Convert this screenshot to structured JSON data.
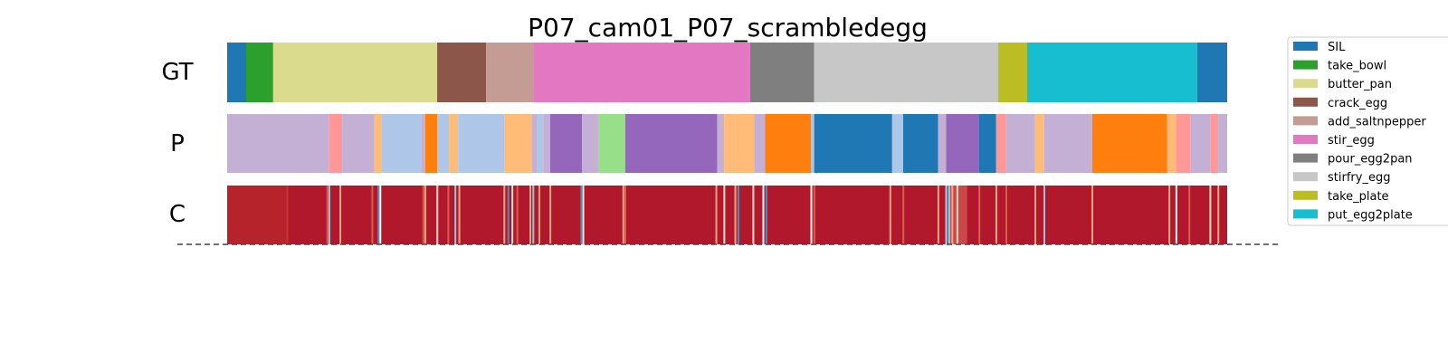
{
  "chart_data": {
    "type": "segmentation_timeline",
    "title": "P07_cam01_P07_scrambledegg",
    "rows": [
      "GT",
      "P",
      "C"
    ],
    "x_range": [
      0,
      1000
    ],
    "legend": {
      "placement": "upper-right",
      "entries": [
        {
          "label": "SIL",
          "color": "#1f77b4"
        },
        {
          "label": "take_bowl",
          "color": "#2ca02c"
        },
        {
          "label": "butter_pan",
          "color": "#dbdb8d"
        },
        {
          "label": "crack_egg",
          "color": "#8c564b"
        },
        {
          "label": "add_saltnpepper",
          "color": "#c49c94"
        },
        {
          "label": "stir_egg",
          "color": "#e377c2"
        },
        {
          "label": "pour_egg2pan",
          "color": "#7f7f7f"
        },
        {
          "label": "stirfry_egg",
          "color": "#c7c7c7"
        },
        {
          "label": "take_plate",
          "color": "#bcbd22"
        },
        {
          "label": "put_egg2plate",
          "color": "#17becf"
        }
      ]
    },
    "gt_segments": [
      {
        "start": 0,
        "end": 19,
        "color": "#1f77b4"
      },
      {
        "start": 19,
        "end": 46,
        "color": "#2ca02c"
      },
      {
        "start": 46,
        "end": 210,
        "color": "#dbdb8d"
      },
      {
        "start": 210,
        "end": 259,
        "color": "#8c564b"
      },
      {
        "start": 259,
        "end": 306,
        "color": "#c49c94"
      },
      {
        "start": 306,
        "end": 523,
        "color": "#e377c2"
      },
      {
        "start": 523,
        "end": 587,
        "color": "#7f7f7f"
      },
      {
        "start": 587,
        "end": 771,
        "color": "#c7c7c7"
      },
      {
        "start": 771,
        "end": 800,
        "color": "#bcbd22"
      },
      {
        "start": 800,
        "end": 970,
        "color": "#17becf"
      },
      {
        "start": 970,
        "end": 1000,
        "color": "#1f77b4"
      }
    ],
    "p_segments": [
      {
        "start": 0,
        "end": 102,
        "color": "#c5b0d5"
      },
      {
        "start": 102,
        "end": 115,
        "color": "#ff9896"
      },
      {
        "start": 115,
        "end": 147,
        "color": "#c5b0d5"
      },
      {
        "start": 147,
        "end": 154,
        "color": "#ffbb78"
      },
      {
        "start": 154,
        "end": 194,
        "color": "#aec7e8"
      },
      {
        "start": 194,
        "end": 198,
        "color": "#c5b0d5"
      },
      {
        "start": 198,
        "end": 210,
        "color": "#ff7f0e"
      },
      {
        "start": 210,
        "end": 222,
        "color": "#aec7e8"
      },
      {
        "start": 222,
        "end": 231,
        "color": "#ffbb78"
      },
      {
        "start": 231,
        "end": 277,
        "color": "#aec7e8"
      },
      {
        "start": 277,
        "end": 305,
        "color": "#ffbb78"
      },
      {
        "start": 305,
        "end": 310,
        "color": "#c5b0d5"
      },
      {
        "start": 310,
        "end": 316,
        "color": "#aec7e8"
      },
      {
        "start": 316,
        "end": 323,
        "color": "#c5b0d5"
      },
      {
        "start": 323,
        "end": 355,
        "color": "#9467bd"
      },
      {
        "start": 355,
        "end": 371,
        "color": "#c5b0d5"
      },
      {
        "start": 371,
        "end": 398,
        "color": "#98df8a"
      },
      {
        "start": 398,
        "end": 490,
        "color": "#9467bd"
      },
      {
        "start": 490,
        "end": 497,
        "color": "#c5b0d5"
      },
      {
        "start": 497,
        "end": 509,
        "color": "#ffbb78"
      },
      {
        "start": 509,
        "end": 527,
        "color": "#ffbb78"
      },
      {
        "start": 527,
        "end": 538,
        "color": "#c5b0d5"
      },
      {
        "start": 538,
        "end": 584,
        "color": "#ff7f0e"
      },
      {
        "start": 584,
        "end": 587,
        "color": "#aec7e8"
      },
      {
        "start": 587,
        "end": 665,
        "color": "#1f77b4"
      },
      {
        "start": 665,
        "end": 676,
        "color": "#aec7e8"
      },
      {
        "start": 676,
        "end": 711,
        "color": "#1f77b4"
      },
      {
        "start": 711,
        "end": 719,
        "color": "#c5b0d5"
      },
      {
        "start": 719,
        "end": 752,
        "color": "#9467bd"
      },
      {
        "start": 752,
        "end": 769,
        "color": "#1f77b4"
      },
      {
        "start": 769,
        "end": 779,
        "color": "#ff9896"
      },
      {
        "start": 779,
        "end": 808,
        "color": "#c5b0d5"
      },
      {
        "start": 808,
        "end": 817,
        "color": "#ffbb78"
      },
      {
        "start": 817,
        "end": 865,
        "color": "#c5b0d5"
      },
      {
        "start": 865,
        "end": 940,
        "color": "#ff7f0e"
      },
      {
        "start": 940,
        "end": 949,
        "color": "#ffbb78"
      },
      {
        "start": 949,
        "end": 963,
        "color": "#ff9896"
      },
      {
        "start": 963,
        "end": 983,
        "color": "#c5b0d5"
      },
      {
        "start": 983,
        "end": 991,
        "color": "#ff9896"
      },
      {
        "start": 991,
        "end": 1000,
        "color": "#c5b0d5"
      }
    ],
    "c_base_color": "#b2182b",
    "c_stripes": [
      {
        "pos": 60,
        "color": "#c0392b"
      },
      {
        "pos": 100,
        "color": "#d6604d"
      },
      {
        "pos": 102,
        "color": "#92c5de"
      },
      {
        "pos": 113,
        "color": "#f4a582"
      },
      {
        "pos": 145,
        "color": "#d6604d"
      },
      {
        "pos": 151,
        "color": "#4393c3"
      },
      {
        "pos": 153,
        "color": "#f7f7f7"
      },
      {
        "pos": 196,
        "color": "#d6604d"
      },
      {
        "pos": 198,
        "color": "#f4a582"
      },
      {
        "pos": 210,
        "color": "#fddbc7"
      },
      {
        "pos": 221,
        "color": "#d6604d"
      },
      {
        "pos": 228,
        "color": "#92c5de"
      },
      {
        "pos": 232,
        "color": "#f4a582"
      },
      {
        "pos": 277,
        "color": "#f4a582"
      },
      {
        "pos": 281,
        "color": "#4393c3"
      },
      {
        "pos": 285,
        "color": "#fddbc7"
      },
      {
        "pos": 290,
        "color": "#d6604d"
      },
      {
        "pos": 303,
        "color": "#f4a582"
      },
      {
        "pos": 306,
        "color": "#92c5de"
      },
      {
        "pos": 312,
        "color": "#f4a582"
      },
      {
        "pos": 323,
        "color": "#f4a582"
      },
      {
        "pos": 354,
        "color": "#4393c3"
      },
      {
        "pos": 356,
        "color": "#fddbc7"
      },
      {
        "pos": 396,
        "color": "#f4a582"
      },
      {
        "pos": 398,
        "color": "#d6604d"
      },
      {
        "pos": 489,
        "color": "#f4a582"
      },
      {
        "pos": 497,
        "color": "#fddbc7"
      },
      {
        "pos": 508,
        "color": "#f4a582"
      },
      {
        "pos": 511,
        "color": "#4393c3"
      },
      {
        "pos": 526,
        "color": "#fddbc7"
      },
      {
        "pos": 536,
        "color": "#f7f7f7"
      },
      {
        "pos": 539,
        "color": "#4393c3"
      },
      {
        "pos": 584,
        "color": "#f7f7f7"
      },
      {
        "pos": 587,
        "color": "#d6604d"
      },
      {
        "pos": 663,
        "color": "#f4a582"
      },
      {
        "pos": 676,
        "color": "#d6604d"
      },
      {
        "pos": 711,
        "color": "#f4a582"
      },
      {
        "pos": 719,
        "color": "#fddbc7"
      },
      {
        "pos": 720,
        "color": "#4393c3"
      },
      {
        "pos": 722,
        "color": "#92c5de"
      },
      {
        "pos": 725,
        "color": "#f4a582"
      },
      {
        "pos": 730,
        "color": "#fddbc7"
      },
      {
        "pos": 752,
        "color": "#d6604d"
      },
      {
        "pos": 769,
        "color": "#f4a582"
      },
      {
        "pos": 779,
        "color": "#d6604d"
      },
      {
        "pos": 808,
        "color": "#f4a582"
      },
      {
        "pos": 817,
        "color": "#92c5de"
      },
      {
        "pos": 865,
        "color": "#f4a582"
      },
      {
        "pos": 942,
        "color": "#f4a582"
      },
      {
        "pos": 949,
        "color": "#f7f7f7"
      },
      {
        "pos": 962,
        "color": "#d6604d"
      },
      {
        "pos": 983,
        "color": "#fddbc7"
      },
      {
        "pos": 991,
        "color": "#f4a582"
      }
    ],
    "c_glow": [
      {
        "start": 718,
        "end": 740,
        "color": "#f4a582"
      },
      {
        "start": 0,
        "end": 60,
        "color": "#c0392b"
      }
    ]
  }
}
